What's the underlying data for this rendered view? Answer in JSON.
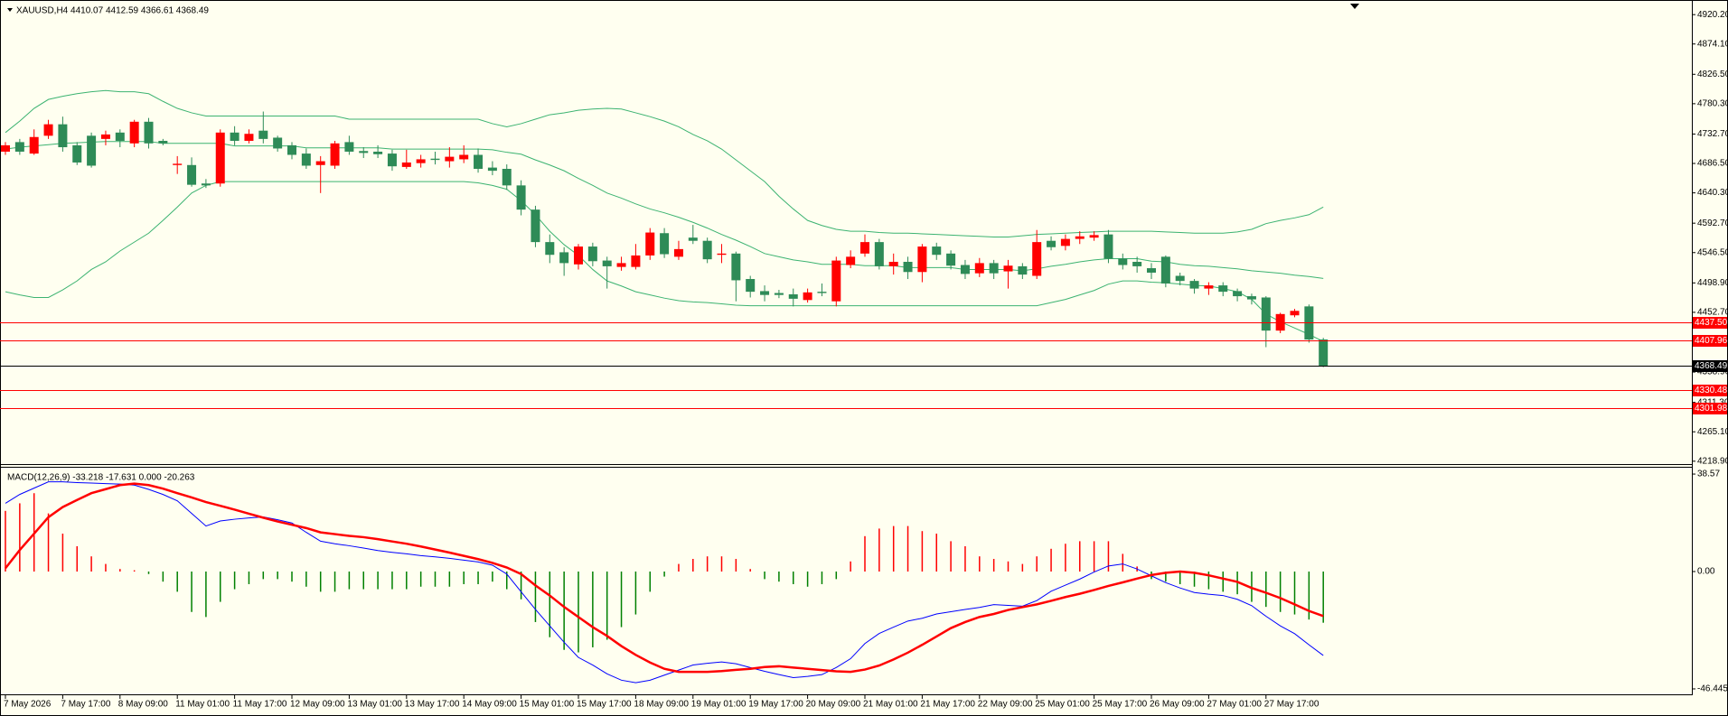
{
  "chart_data": [
    {
      "type": "candlestick",
      "title": "XAUUSD,H4  4410.07 4412.59 4366.61 4368.49",
      "categories": [
        "7 May 2026",
        null,
        null,
        null,
        "7 May 17:00",
        null,
        null,
        null,
        "8 May 09:00",
        null,
        null,
        null,
        "11 May 01:00",
        null,
        null,
        null,
        "11 May 17:00",
        null,
        null,
        null,
        "12 May 09:00",
        null,
        null,
        null,
        "13 May 01:00",
        null,
        null,
        null,
        "13 May 17:00",
        null,
        null,
        null,
        "14 May 09:00",
        null,
        null,
        null,
        "15 May 01:00",
        null,
        null,
        null,
        "15 May 17:00",
        null,
        null,
        null,
        "18 May 09:00",
        null,
        null,
        null,
        "19 May 01:00",
        null,
        null,
        null,
        "19 May 17:00",
        null,
        null,
        null,
        "20 May 09:00",
        null,
        null,
        null,
        "21 May 01:00",
        null,
        null,
        null,
        "21 May 17:00",
        null,
        null,
        null,
        "22 May 09:00",
        null,
        null,
        null,
        "25 May 01:00",
        null,
        null,
        null,
        "25 May 17:00",
        null,
        null,
        null,
        "26 May 09:00",
        null,
        null,
        null,
        "27 May 01:00",
        null,
        null,
        null,
        "27 May 17:00",
        null,
        null,
        null,
        null
      ],
      "open": [
        4705,
        4720,
        4702,
        4730,
        4748,
        4715,
        4730,
        4725,
        4735,
        4718,
        4752,
        4722,
        4684,
        4684,
        4655,
        4655,
        4735,
        4722,
        4738,
        4727,
        4715,
        4702,
        4684,
        4683,
        4720,
        4706,
        4705,
        4702,
        4681,
        4687,
        4694,
        4690,
        4693,
        4700,
        4680,
        4678,
        4652,
        4614,
        4563,
        4547,
        4528,
        4556,
        4534,
        4524,
        4524,
        4542,
        4577,
        4540,
        4570,
        4565,
        4543,
        4545,
        4505,
        4486,
        4483,
        4481,
        4472,
        4485,
        4470,
        4527,
        4545,
        4563,
        4525,
        4532,
        4516,
        4556,
        4545,
        4527,
        4514,
        4530,
        4517,
        4525,
        4510,
        4565,
        4557,
        4568,
        4570,
        4575,
        4537,
        4532,
        4522,
        4540,
        4510,
        4502,
        4490,
        4495,
        4486,
        4478,
        4476,
        4424,
        4448,
        4462,
        4410.07
      ],
      "high": [
        4720,
        4725,
        4740,
        4755,
        4760,
        4720,
        4735,
        4738,
        4740,
        4755,
        4758,
        4725,
        4698,
        4696,
        4662,
        4740,
        4745,
        4740,
        4768,
        4730,
        4720,
        4710,
        4698,
        4722,
        4730,
        4712,
        4715,
        4708,
        4708,
        4700,
        4705,
        4712,
        4715,
        4710,
        4690,
        4685,
        4660,
        4620,
        4575,
        4555,
        4560,
        4562,
        4540,
        4540,
        4560,
        4585,
        4585,
        4565,
        4590,
        4570,
        4560,
        4548,
        4510,
        4495,
        4488,
        4490,
        4490,
        4498,
        4540,
        4550,
        4575,
        4568,
        4545,
        4540,
        4560,
        4562,
        4550,
        4535,
        4538,
        4535,
        4535,
        4530,
        4582,
        4572,
        4575,
        4580,
        4580,
        4582,
        4545,
        4540,
        4530,
        4542,
        4515,
        4505,
        4500,
        4500,
        4490,
        4482,
        4478,
        4452,
        4458,
        4465,
        4412.59
      ],
      "low": [
        4700,
        4700,
        4700,
        4725,
        4705,
        4684,
        4680,
        4715,
        4712,
        4712,
        4710,
        4715,
        4670,
        4650,
        4648,
        4650,
        4715,
        4718,
        4718,
        4705,
        4693,
        4678,
        4640,
        4678,
        4700,
        4695,
        4695,
        4675,
        4678,
        4680,
        4685,
        4680,
        4687,
        4672,
        4668,
        4645,
        4605,
        4555,
        4530,
        4510,
        4520,
        4525,
        4490,
        4518,
        4520,
        4535,
        4538,
        4535,
        4560,
        4530,
        4530,
        4470,
        4476,
        4470,
        4475,
        4462,
        4468,
        4478,
        4462,
        4522,
        4540,
        4520,
        4512,
        4505,
        4500,
        4535,
        4520,
        4505,
        4508,
        4505,
        4490,
        4505,
        4505,
        4550,
        4550,
        4560,
        4565,
        4530,
        4520,
        4515,
        4505,
        4492,
        4495,
        4482,
        4480,
        4478,
        4470,
        4465,
        4398,
        4420,
        4445,
        4405,
        4366.61
      ],
      "close": [
        4715,
        4705,
        4728,
        4748,
        4712,
        4688,
        4683,
        4732,
        4722,
        4752,
        4718,
        4718,
        4686,
        4653,
        4652,
        4735,
        4722,
        4733,
        4725,
        4710,
        4700,
        4683,
        4690,
        4718,
        4705,
        4703,
        4701,
        4682,
        4688,
        4693,
        4692,
        4697,
        4700,
        4678,
        4675,
        4652,
        4614,
        4563,
        4543,
        4530,
        4556,
        4533,
        4525,
        4530,
        4542,
        4578,
        4544,
        4552,
        4565,
        4536,
        4545,
        4503,
        4485,
        4480,
        4480,
        4474,
        4484,
        4483,
        4534,
        4540,
        4563,
        4525,
        4532,
        4516,
        4556,
        4543,
        4526,
        4513,
        4530,
        4514,
        4526,
        4512,
        4563,
        4555,
        4568,
        4572,
        4574,
        4537,
        4527,
        4525,
        4515,
        4498,
        4502,
        4490,
        4495,
        4485,
        4478,
        4473,
        4424,
        4450,
        4455,
        4410,
        4368.49
      ],
      "up_color": "#ff0000",
      "down_color": "#2e8b57",
      "bands": [
        {
          "color": "#3cb371",
          "values": [
            4735,
            4753,
            4773,
            4787,
            4792,
            4796,
            4799,
            4801,
            4799,
            4799,
            4796,
            4784,
            4773,
            4766,
            4761,
            4761,
            4761,
            4761,
            4761,
            4761,
            4761,
            4761,
            4761,
            4761,
            4756,
            4756,
            4756,
            4756,
            4756,
            4756,
            4756,
            4756,
            4756,
            4756,
            4749,
            4744,
            4749,
            4756,
            4763,
            4766,
            4770,
            4772,
            4773,
            4772,
            4766,
            4760,
            4753,
            4744,
            4732,
            4722,
            4709,
            4692,
            4675,
            4658,
            4635,
            4615,
            4597,
            4589,
            4583,
            4580,
            4580,
            4578,
            4577,
            4577,
            4576,
            4575,
            4574,
            4573,
            4572,
            4571,
            4571,
            4573,
            4575,
            4576,
            4577,
            4578,
            4579,
            4580,
            4580,
            4580,
            4580,
            4579,
            4578,
            4577,
            4577,
            4577,
            4579,
            4583,
            4592,
            4597,
            4601,
            4606,
            4618
          ]
        },
        {
          "color": "#3cb371",
          "values": [
            4709,
            4712,
            4714,
            4716,
            4718,
            4719,
            4720,
            4721,
            4721,
            4721,
            4721,
            4718,
            4718,
            4718,
            4718,
            4718,
            4714,
            4714,
            4714,
            4714,
            4714,
            4711,
            4711,
            4711,
            4711,
            4711,
            4711,
            4709,
            4709,
            4709,
            4709,
            4709,
            4709,
            4709,
            4708,
            4704,
            4701,
            4692,
            4684,
            4675,
            4663,
            4652,
            4640,
            4632,
            4623,
            4615,
            4609,
            4602,
            4594,
            4585,
            4575,
            4566,
            4556,
            4545,
            4540,
            4535,
            4532,
            4528,
            4528,
            4528,
            4526,
            4526,
            4526,
            4523,
            4523,
            4523,
            4523,
            4520,
            4520,
            4520,
            4520,
            4518,
            4521,
            4525,
            4528,
            4532,
            4535,
            4537,
            4537,
            4537,
            4533,
            4532,
            4528,
            4526,
            4525,
            4523,
            4521,
            4518,
            4516,
            4514,
            4511,
            4509,
            4506
          ]
        },
        {
          "color": "#3cb371",
          "values": [
            4485,
            4480,
            4476,
            4476,
            4488,
            4502,
            4520,
            4532,
            4549,
            4563,
            4577,
            4597,
            4618,
            4640,
            4652,
            4658,
            4658,
            4658,
            4658,
            4658,
            4658,
            4658,
            4658,
            4658,
            4658,
            4658,
            4658,
            4658,
            4658,
            4658,
            4658,
            4658,
            4658,
            4656,
            4652,
            4646,
            4628,
            4606,
            4580,
            4559,
            4542,
            4520,
            4502,
            4494,
            4485,
            4480,
            4475,
            4471,
            4469,
            4468,
            4466,
            4464,
            4463,
            4463,
            4463,
            4463,
            4463,
            4463,
            4463,
            4463,
            4463,
            4463,
            4463,
            4463,
            4463,
            4463,
            4463,
            4463,
            4463,
            4463,
            4463,
            4463,
            4463,
            4468,
            4473,
            4480,
            4487,
            4497,
            4502,
            4502,
            4500,
            4499,
            4497,
            4495,
            4494,
            4490,
            4485,
            4473,
            4450,
            4438,
            4428,
            4418,
            4407
          ]
        }
      ],
      "levels": [
        {
          "value": 4437.5,
          "label": "4437.50",
          "color": "#ff0000"
        },
        {
          "value": 4407.96,
          "label": "4407.96",
          "color": "#ff0000"
        },
        {
          "value": 4368.49,
          "label": "4368.49",
          "color": "#000000"
        },
        {
          "value": 4330.48,
          "label": "4330.48",
          "color": "#ff0000"
        },
        {
          "value": 4301.98,
          "label": "4301.98",
          "color": "#ff0000"
        }
      ],
      "ylim": [
        4217.2,
        4937.5
      ],
      "yticks": [
        {
          "value": 4920.2,
          "label": "4920.20"
        },
        {
          "value": 4874.1,
          "label": "4874.10"
        },
        {
          "value": 4826.5,
          "label": "4826.50"
        },
        {
          "value": 4780.3,
          "label": "4780.30"
        },
        {
          "value": 4732.7,
          "label": "4732.70"
        },
        {
          "value": 4686.5,
          "label": "4686.50"
        },
        {
          "value": 4640.3,
          "label": "4640.30"
        },
        {
          "value": 4592.7,
          "label": "4592.70"
        },
        {
          "value": 4546.5,
          "label": "4546.50"
        },
        {
          "value": 4498.9,
          "label": "4498.90"
        },
        {
          "value": 4452.7,
          "label": "4452.70"
        },
        {
          "value": 4358.9,
          "label": "4358.90"
        },
        {
          "value": 4311.3,
          "label": "4311.30"
        },
        {
          "value": 4265.1,
          "label": "4265.10"
        },
        {
          "value": 4218.9,
          "label": "4218.90"
        }
      ],
      "grid": false
    },
    {
      "type": "macd",
      "title": "MACD(12,26,9) -33.218 -17.631 0.000 -20.263",
      "histogram": {
        "pos_color": "#ff0000",
        "neg_color": "#008000",
        "values": [
          24,
          27,
          31,
          23,
          15,
          10,
          6,
          3,
          1,
          0.5,
          -1,
          -4,
          -8,
          -16,
          -18,
          -12,
          -7,
          -5,
          -3,
          -3,
          -4,
          -6,
          -8,
          -8,
          -7,
          -7,
          -7,
          -7,
          -7,
          -6,
          -6,
          -6,
          -5,
          -5,
          -4,
          -7,
          -11,
          -20,
          -26,
          -31,
          -32,
          -30,
          -27,
          -22,
          -17,
          -8,
          -2,
          3,
          5,
          6,
          6,
          5,
          1,
          -3,
          -4,
          -5,
          -6,
          -5,
          -3,
          4,
          14,
          17,
          18,
          18,
          16,
          15,
          12,
          10,
          6,
          5,
          4,
          3,
          6,
          9,
          11,
          12,
          12,
          12,
          7,
          2,
          -3,
          -4,
          -5,
          -6,
          -7,
          -8,
          -9,
          -12,
          -14,
          -16,
          -17,
          -19,
          -20.263
        ]
      },
      "series": [
        {
          "color": "#0000ff",
          "width": 1,
          "values": [
            27,
            30.5,
            33,
            35.5,
            35.5,
            35.2,
            35,
            34.8,
            34.6,
            34.2,
            32.5,
            30.5,
            28,
            23,
            18,
            20,
            20.7,
            21.2,
            21.6,
            20.5,
            19.2,
            15.5,
            12,
            11,
            10.2,
            9.3,
            8.3,
            7.6,
            7,
            6.3,
            5.8,
            5.2,
            4.5,
            3.8,
            2.5,
            -1,
            -8,
            -15,
            -21.5,
            -28,
            -34,
            -37,
            -40.5,
            -43,
            -44,
            -43,
            -41,
            -39,
            -37,
            -36.3,
            -35.8,
            -36.5,
            -38,
            -39.5,
            -40.8,
            -42,
            -41.5,
            -40.8,
            -38,
            -34.5,
            -28.5,
            -24.5,
            -22,
            -19.6,
            -18.5,
            -16.8,
            -15.9,
            -15,
            -14.2,
            -13.1,
            -13.4,
            -13.7,
            -11.5,
            -7.8,
            -5.4,
            -3,
            -0.2,
            2.2,
            3,
            1,
            -1.7,
            -4.4,
            -6.5,
            -8.3,
            -9,
            -9.5,
            -11,
            -13.5,
            -17.7,
            -21.5,
            -24.6,
            -29,
            -33.218
          ]
        },
        {
          "color": "#ff0000",
          "width": 2.5,
          "values": [
            1.3,
            8.5,
            15,
            21.5,
            25.5,
            28.3,
            31,
            32.6,
            34.2,
            34.8,
            34.2,
            32.8,
            31,
            29.3,
            27.5,
            26,
            24.5,
            22.9,
            21.3,
            19.8,
            18.5,
            17.2,
            15.5,
            14.8,
            14.1,
            13.6,
            12.8,
            11.9,
            11,
            9.9,
            8.7,
            7.5,
            6.2,
            4.9,
            3.4,
            1.6,
            -1,
            -5.5,
            -9.5,
            -14,
            -18,
            -22,
            -25.5,
            -29.5,
            -33,
            -36,
            -38.5,
            -39.7,
            -39.7,
            -39.7,
            -39.4,
            -38.9,
            -38.5,
            -37.8,
            -37.5,
            -38,
            -38.5,
            -39,
            -39.5,
            -39.7,
            -38.8,
            -37.2,
            -34.8,
            -32.1,
            -29,
            -25.7,
            -22.4,
            -20,
            -18,
            -16.8,
            -15.2,
            -14.1,
            -13,
            -11.6,
            -10.1,
            -8.8,
            -7.3,
            -5.7,
            -4.3,
            -2.8,
            -1.4,
            -0.5,
            0,
            -0.5,
            -1.5,
            -2.8,
            -4.1,
            -6.5,
            -8.4,
            -10.5,
            -13,
            -15.6,
            -17.631
          ]
        }
      ],
      "ylim": [
        -48.6,
        40.73
      ],
      "yticks": [
        38.57,
        {
          "value": 0,
          "label": "0.00"
        },
        -46.445
      ]
    }
  ]
}
